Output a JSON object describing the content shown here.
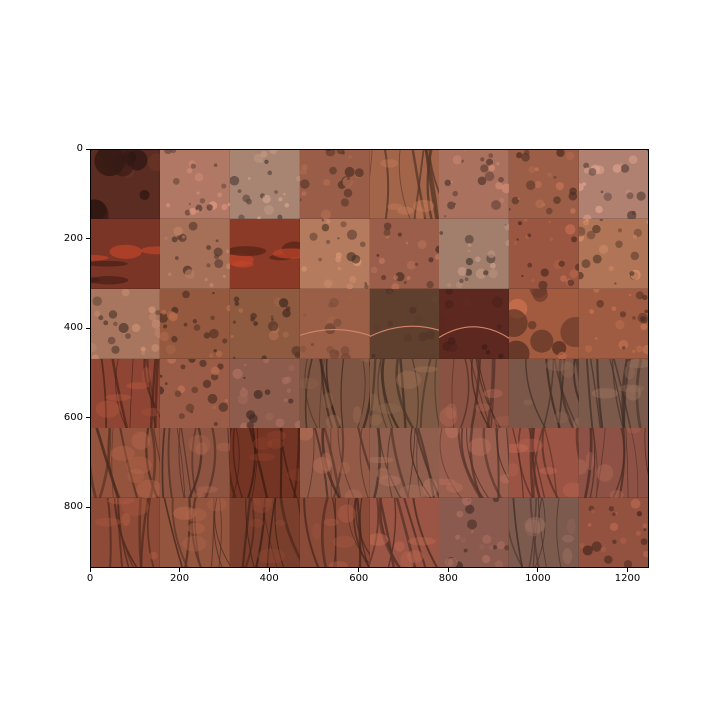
{
  "x_axis": {
    "ticks": [
      {
        "label": "0",
        "value": 0
      },
      {
        "label": "200",
        "value": 200
      },
      {
        "label": "400",
        "value": 400
      },
      {
        "label": "600",
        "value": 600
      },
      {
        "label": "800",
        "value": 800
      },
      {
        "label": "1000",
        "value": 1000
      },
      {
        "label": "1200",
        "value": 1200
      }
    ],
    "range": [
      0,
      1248
    ]
  },
  "y_axis": {
    "ticks": [
      {
        "label": "0",
        "value": 0
      },
      {
        "label": "200",
        "value": 200
      },
      {
        "label": "400",
        "value": 400
      },
      {
        "label": "600",
        "value": 600
      },
      {
        "label": "800",
        "value": 800
      }
    ],
    "range": [
      0,
      936
    ],
    "inverted": true
  },
  "grid": {
    "rows": 6,
    "cols": 8
  },
  "tiles": [
    {
      "base": "#5a2c22",
      "feature": "dark-patch"
    },
    {
      "base": "#b17865",
      "feature": "mottled"
    },
    {
      "base": "#a88573",
      "feature": "mottled"
    },
    {
      "base": "#9a5e48",
      "feature": "mottled"
    },
    {
      "base": "#a2654a",
      "feature": "streaks"
    },
    {
      "base": "#a9715e",
      "feature": "mottled"
    },
    {
      "base": "#9d5e47",
      "feature": "mottled"
    },
    {
      "base": "#b08071",
      "feature": "mottled"
    },
    {
      "base": "#7a3526",
      "feature": "red-band"
    },
    {
      "base": "#a56f58",
      "feature": "mottled"
    },
    {
      "base": "#8a3a27",
      "feature": "red-band"
    },
    {
      "base": "#b47b5e",
      "feature": "mottled"
    },
    {
      "base": "#9a5e4a",
      "feature": "mottled"
    },
    {
      "base": "#a27f6d",
      "feature": "mottled"
    },
    {
      "base": "#9a5640",
      "feature": "mottled"
    },
    {
      "base": "#b07556",
      "feature": "mottled"
    },
    {
      "base": "#a8765f",
      "feature": "mottled"
    },
    {
      "base": "#94593f",
      "feature": "mottled"
    },
    {
      "base": "#8e5a40",
      "feature": "mottled"
    },
    {
      "base": "#9b5f47",
      "feature": "road"
    },
    {
      "base": "#5f3f2e",
      "feature": "road"
    },
    {
      "base": "#5c2820",
      "feature": "road"
    },
    {
      "base": "#a35b40",
      "feature": "dark-patch"
    },
    {
      "base": "#9f5c42",
      "feature": "mottled"
    },
    {
      "base": "#8e4533",
      "feature": "streaks"
    },
    {
      "base": "#9a5c46",
      "feature": "mottled"
    },
    {
      "base": "#8e5c4d",
      "feature": "mottled"
    },
    {
      "base": "#7d5542",
      "feature": "streaks"
    },
    {
      "base": "#7e5a44",
      "feature": "streaks"
    },
    {
      "base": "#8a5242",
      "feature": "streaks"
    },
    {
      "base": "#7a5748",
      "feature": "streaks"
    },
    {
      "base": "#7b5a4b",
      "feature": "streaks"
    },
    {
      "base": "#93533d",
      "feature": "streaks"
    },
    {
      "base": "#8e5442",
      "feature": "streaks"
    },
    {
      "base": "#743423",
      "feature": "streaks"
    },
    {
      "base": "#935a47",
      "feature": "streaks"
    },
    {
      "base": "#8f5e4d",
      "feature": "streaks"
    },
    {
      "base": "#9a5e4e",
      "feature": "streaks"
    },
    {
      "base": "#9b5444",
      "feature": "streaks"
    },
    {
      "base": "#8d5245",
      "feature": "streaks"
    },
    {
      "base": "#8d4a36",
      "feature": "streaks"
    },
    {
      "base": "#94553f",
      "feature": "streaks"
    },
    {
      "base": "#7a3e2c",
      "feature": "streaks"
    },
    {
      "base": "#8a4a38",
      "feature": "streaks"
    },
    {
      "base": "#9a5544",
      "feature": "streaks"
    },
    {
      "base": "#8a5a4e",
      "feature": "mottled"
    },
    {
      "base": "#7d5a4e",
      "feature": "streaks"
    },
    {
      "base": "#93523f",
      "feature": "mottled"
    }
  ]
}
